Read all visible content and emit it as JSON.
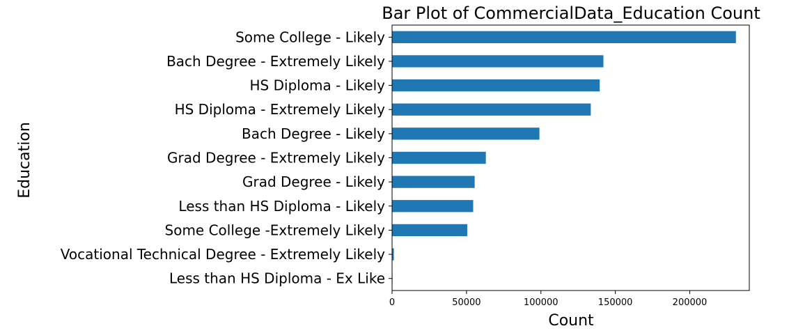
{
  "chart_data": {
    "type": "bar",
    "orientation": "horizontal",
    "title": "Bar Plot of CommercialData_Education Count",
    "xlabel": "Count",
    "ylabel": "Education",
    "categories": [
      "Some College - Likely",
      "Bach Degree - Extremely Likely",
      "HS Diploma - Likely",
      "HS Diploma - Extremely Likely",
      "Bach Degree - Likely",
      "Grad Degree - Extremely Likely",
      "Grad Degree - Likely",
      "Less than HS Diploma - Likely",
      "Some College -Extremely Likely",
      "Vocational Technical Degree - Extremely Likely",
      "Less than HS Diploma - Ex Like"
    ],
    "values": [
      231000,
      142000,
      139500,
      133500,
      99000,
      63000,
      55500,
      54500,
      50500,
      1200,
      300
    ],
    "xlim": [
      0,
      240000
    ],
    "xticks": [
      0,
      50000,
      100000,
      150000,
      200000
    ],
    "xtick_labels": [
      "0",
      "50000",
      "100000",
      "150000",
      "200000"
    ],
    "grid": false,
    "bar_color": "#1f77b4"
  }
}
